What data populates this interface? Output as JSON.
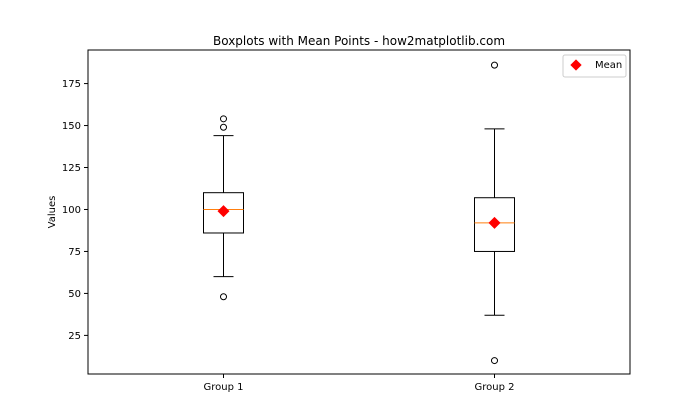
{
  "chart_data": {
    "type": "boxplot",
    "title": "Boxplots with Mean Points - how2matplotlib.com",
    "xlabel": "",
    "ylabel": "Values",
    "categories": [
      "Group 1",
      "Group 2"
    ],
    "ylim": [
      2,
      195
    ],
    "yticks": [
      25,
      50,
      75,
      100,
      125,
      150,
      175
    ],
    "grid": false,
    "legend": {
      "placement": "top-right",
      "entries": [
        "Mean"
      ]
    },
    "boxes": [
      {
        "name": "Group 1",
        "whisker_low": 60,
        "q1": 86,
        "median": 100,
        "q3": 110,
        "whisker_high": 144,
        "mean": 99,
        "outliers": [
          48,
          149,
          154
        ]
      },
      {
        "name": "Group 2",
        "whisker_low": 37,
        "q1": 75,
        "median": 92,
        "q3": 107,
        "whisker_high": 148,
        "mean": 92,
        "outliers": [
          10,
          186
        ]
      }
    ],
    "colors": {
      "median": "#ff7f0e",
      "mean": "#ff0000",
      "box": "#000000"
    }
  }
}
